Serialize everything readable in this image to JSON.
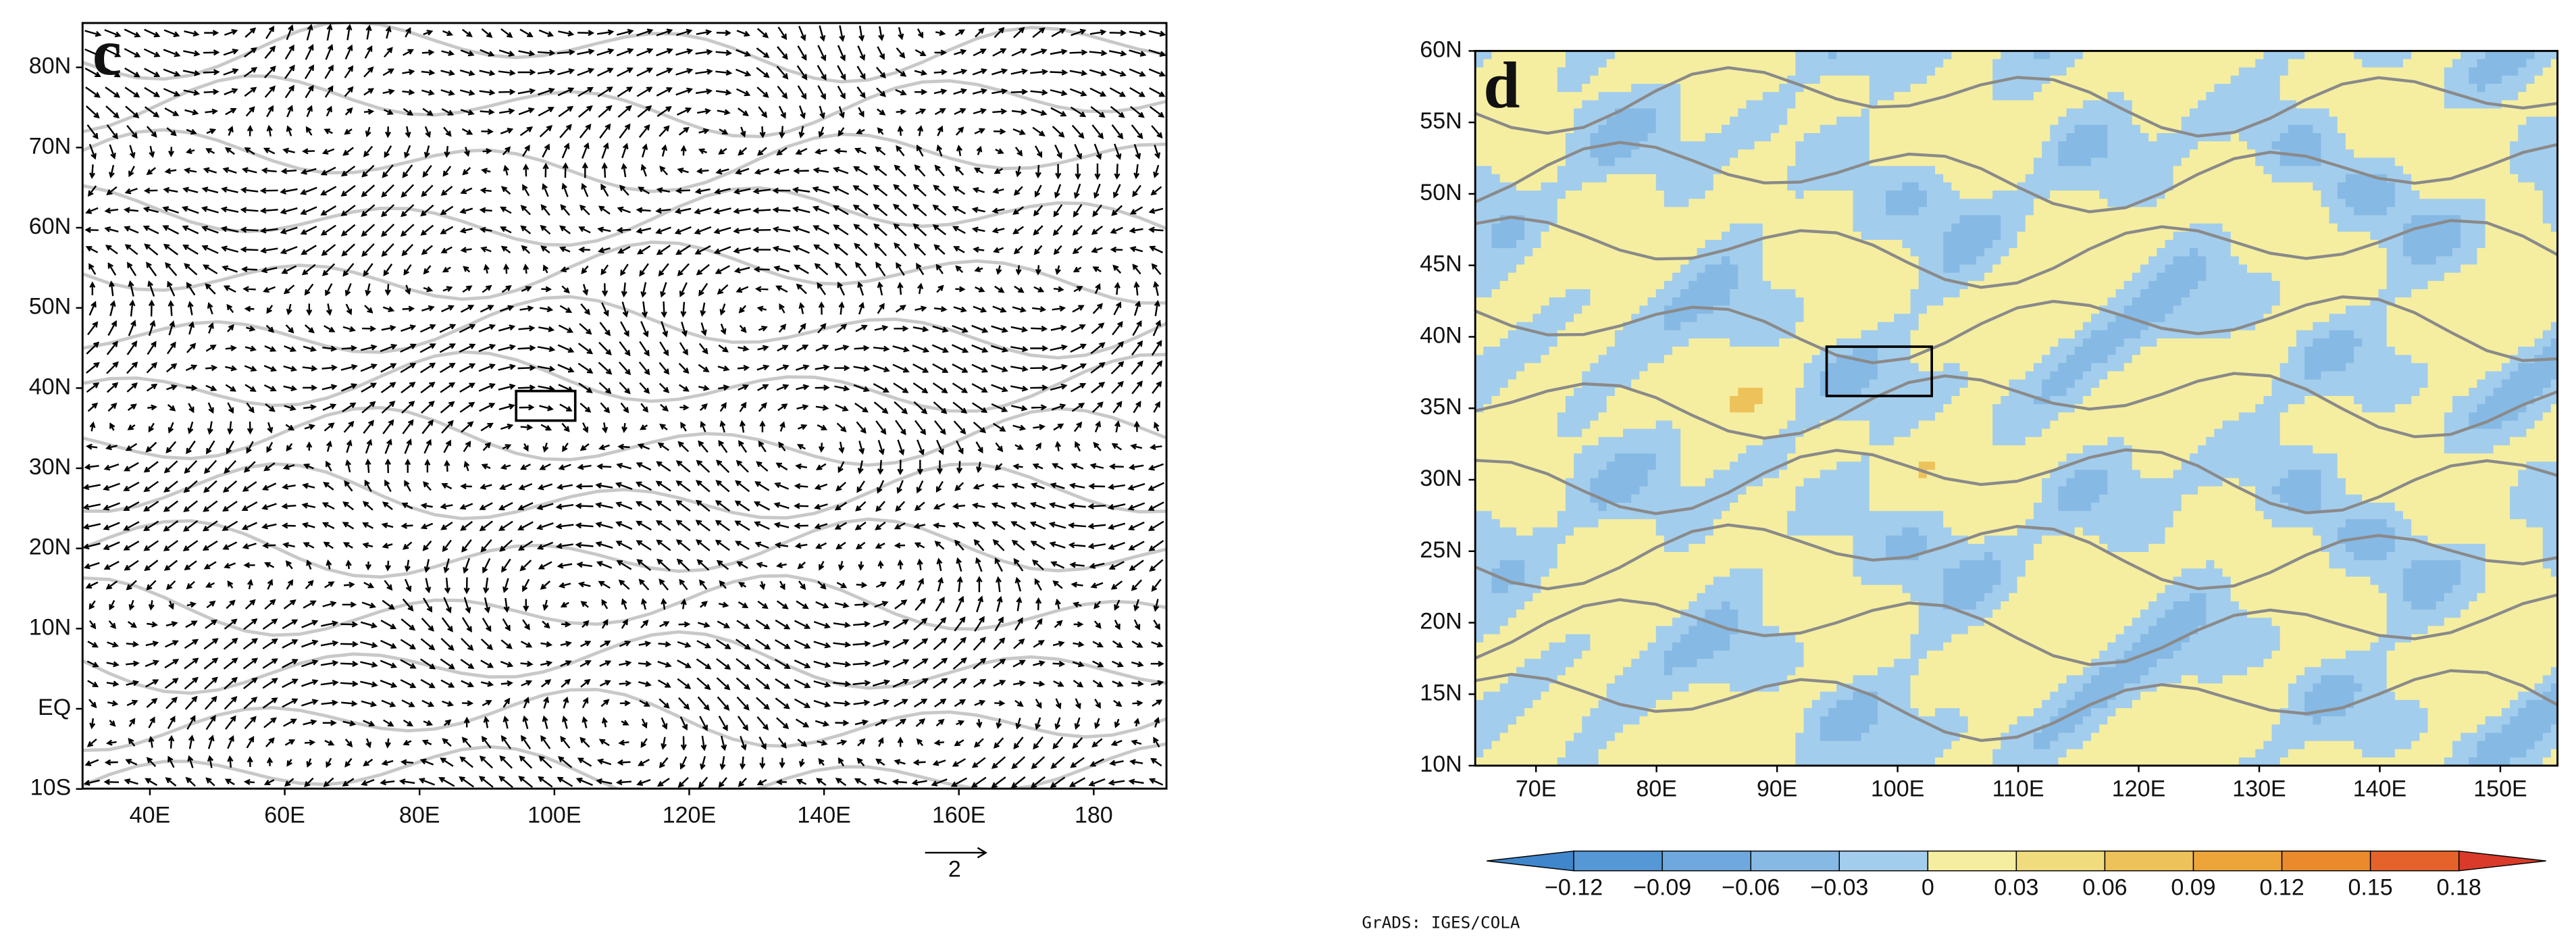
{
  "panels": [
    {
      "label": "c",
      "yticks": [
        "80N",
        "70N",
        "60N",
        "50N",
        "40N",
        "30N",
        "20N",
        "10N",
        "EQ",
        "10S"
      ],
      "xticks": [
        "40E",
        "60E",
        "80E",
        "100E",
        "120E",
        "140E",
        "160E",
        "180"
      ],
      "reference_vector": 2
    },
    {
      "label": "d",
      "yticks": [
        "60N",
        "55N",
        "50N",
        "45N",
        "40N",
        "35N",
        "30N",
        "25N",
        "20N",
        "15N",
        "10N"
      ],
      "xticks": [
        "70E",
        "80E",
        "90E",
        "100E",
        "110E",
        "120E",
        "130E",
        "140E",
        "150E"
      ]
    }
  ],
  "colorbar": {
    "ticks": [
      {
        "value": -0.12,
        "label": "−0.12"
      },
      {
        "value": -0.09,
        "label": "−0.09"
      },
      {
        "value": -0.06,
        "label": "−0.06"
      },
      {
        "value": -0.03,
        "label": "−0.03"
      },
      0,
      0.03,
      0.06,
      0.09,
      0.12,
      0.15,
      0.18
    ],
    "colors": [
      "#3f86cc",
      "#5697d6",
      "#6ea8de",
      "#86b9e4",
      "#a3cdec",
      "#f5eea0",
      "#f0dc7c",
      "#eec25a",
      "#eda53a",
      "#eb8a2c",
      "#e5632a",
      "#d93a2a"
    ]
  },
  "footer": "GrADS: IGES/COLA"
}
